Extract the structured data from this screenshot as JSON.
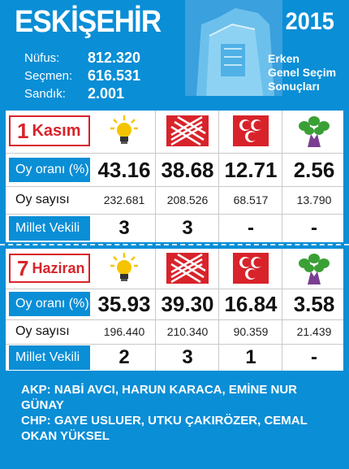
{
  "header": {
    "city": "ESKİŞEHİR",
    "year": "2015",
    "subtitle": [
      "Erken",
      "Genel Seçim",
      "Sonuçları"
    ],
    "stats": [
      {
        "label": "Nüfus:",
        "value": "812.320"
      },
      {
        "label": "Seçmen:",
        "value": "616.531"
      },
      {
        "label": "Sandık:",
        "value": "2.001"
      }
    ]
  },
  "row_labels": {
    "vote_rate": "Oy oranı (%)",
    "vote_count": "Oy sayısı",
    "mps": "Millet Vekili"
  },
  "parties": [
    {
      "name": "AKP",
      "icon": "akp-bulb-icon"
    },
    {
      "name": "CHP",
      "icon": "chp-six-arrows-icon"
    },
    {
      "name": "MHP",
      "icon": "mhp-three-crescents-icon"
    },
    {
      "name": "HDP",
      "icon": "hdp-tree-icon"
    }
  ],
  "elections": [
    {
      "date_num": "1",
      "date_month": "Kasım",
      "vote_rate": [
        "43.16",
        "38.68",
        "12.71",
        "2.56"
      ],
      "vote_count": [
        "232.681",
        "208.526",
        "68.517",
        "13.790"
      ],
      "mps": [
        "3",
        "3",
        "-",
        "-"
      ]
    },
    {
      "date_num": "7",
      "date_month": "Haziran",
      "vote_rate": [
        "35.93",
        "39.30",
        "16.84",
        "3.58"
      ],
      "vote_count": [
        "196.440",
        "210.340",
        "90.359",
        "21.439"
      ],
      "mps": [
        "2",
        "3",
        "1",
        "-"
      ]
    }
  ],
  "elected": {
    "akp": "AKP: NABİ AVCI, HARUN KARACA, EMİNE NUR GÜNAY",
    "chp": "CHP: GAYE USLUER, UTKU ÇAKIRÖZER, CEMAL OKAN YÜKSEL"
  },
  "colors": {
    "background": "#0a8ed6",
    "accent_red": "#d8232a",
    "akp_yellow": "#f5c400",
    "hdp_green": "#3aa035"
  }
}
